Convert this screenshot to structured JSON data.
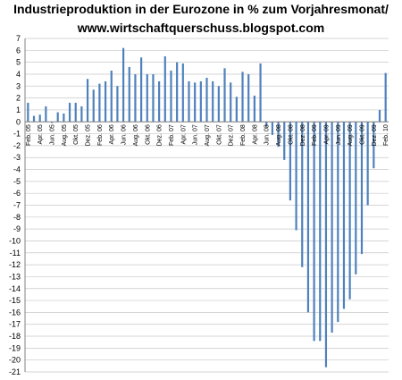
{
  "chart_data": {
    "type": "bar",
    "title": "Industrieproduktion in der Eurozone in % zum Vorjahresmonat/",
    "subtitle": "www.wirtschaftquerschuss.blogspot.com",
    "xlabel": "",
    "ylabel": "",
    "ylim": [
      -21,
      7
    ],
    "ytick_step": 1,
    "grid": true,
    "legend": "none",
    "bar_color": "#4f81bd",
    "categories": [
      "Feb.05",
      "Mrz.05",
      "Apr.05",
      "Mai.05",
      "Jun.05",
      "Jul.05",
      "Aug.05",
      "Sep.05",
      "Okt.05",
      "Nov.05",
      "Dez.05",
      "Jan.06",
      "Feb.06",
      "Mrz.06",
      "Apr.06",
      "Mai.06",
      "Jun.06",
      "Jul.06",
      "Aug.06",
      "Sep.06",
      "Okt.06",
      "Nov.06",
      "Dez.06",
      "Jan.07",
      "Feb.07",
      "Mrz.07",
      "Apr.07",
      "Mai.07",
      "Jun.07",
      "Jul.07",
      "Aug.07",
      "Sep.07",
      "Okt.07",
      "Nov.07",
      "Dez.07",
      "Jan.08",
      "Feb.08",
      "Mrz.08",
      "Apr.08",
      "Mai.08",
      "Jun.08",
      "Jul.08",
      "Aug.08",
      "Sep.08",
      "Okt.08",
      "Nov.08",
      "Dez.08",
      "Jan.09",
      "Feb.09",
      "Mrz.09",
      "Apr.09",
      "Mai.09",
      "Jun.09",
      "Jul.09",
      "Aug.09",
      "Sep.09",
      "Okt.09",
      "Nov.09",
      "Dez.09",
      "Jan.10",
      "Feb.10"
    ],
    "categories_labeled": [
      "Feb. 05",
      "Apr. 05",
      "Jun. 05",
      "Aug. 05",
      "Okt. 05",
      "Dez. 05",
      "Feb. 06",
      "Apr. 06",
      "Jun. 06",
      "Aug. 06",
      "Okt. 06",
      "Dez. 06",
      "Feb. 07",
      "Apr. 07",
      "Jun. 07",
      "Aug. 07",
      "Okt. 07",
      "Dez. 07",
      "Feb. 08",
      "Apr. 08",
      "Jun. 08",
      "Aug. 08",
      "Okt. 08",
      "Dez. 08",
      "Feb. 09",
      "Apr. 09",
      "Jun. 09",
      "Aug. 09",
      "Okt. 09",
      "Dez. 09",
      "Feb. 10"
    ],
    "values": [
      1.6,
      0.5,
      0.6,
      1.3,
      -0.1,
      0.8,
      0.7,
      1.6,
      1.6,
      1.3,
      3.6,
      2.7,
      3.2,
      3.4,
      4.3,
      3.0,
      6.2,
      4.6,
      4.0,
      5.4,
      4.0,
      4.0,
      3.4,
      5.5,
      4.3,
      5.0,
      4.9,
      3.4,
      3.3,
      3.4,
      3.7,
      3.4,
      3.0,
      4.5,
      3.3,
      2.1,
      4.2,
      4.0,
      2.2,
      4.9,
      -0.4,
      -1.1,
      -2.1,
      -3.2,
      -6.6,
      -9.1,
      -12.2,
      -16.0,
      -18.4,
      -18.4,
      -20.6,
      -17.7,
      -16.8,
      -15.7,
      -14.9,
      -12.8,
      -11.1,
      -7.0,
      -3.9,
      1.0,
      4.1
    ]
  }
}
